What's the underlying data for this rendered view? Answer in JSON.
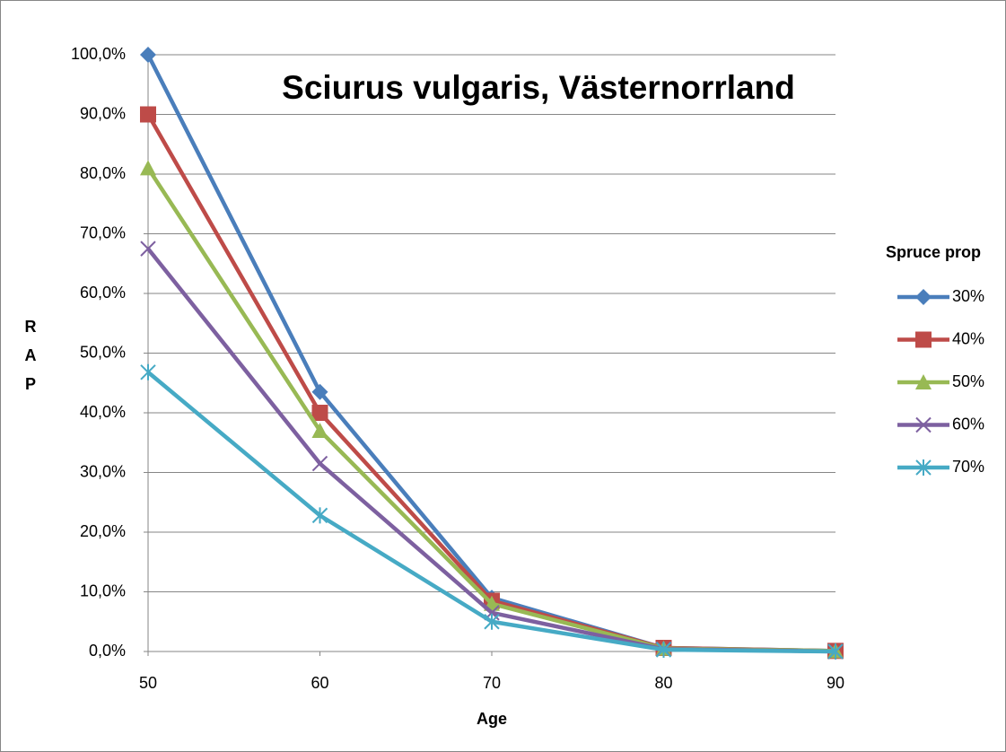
{
  "chart_data": {
    "type": "line",
    "title": "Sciurus vulgaris, Västernorrland",
    "x_label": "Age",
    "y_label": "RAP",
    "legend_title": "Spruce prop",
    "legend_position": "right",
    "grid": true,
    "x": [
      50,
      60,
      70,
      80,
      90
    ],
    "xlim": [
      50,
      90
    ],
    "xticks": [
      50,
      60,
      70,
      80,
      90
    ],
    "ylim": [
      0,
      100
    ],
    "yticks": [
      {
        "value": 0,
        "label": "0,0%"
      },
      {
        "value": 10,
        "label": "10,0%"
      },
      {
        "value": 20,
        "label": "20,0%"
      },
      {
        "value": 30,
        "label": "30,0%"
      },
      {
        "value": 40,
        "label": "40,0%"
      },
      {
        "value": 50,
        "label": "50,0%"
      },
      {
        "value": 60,
        "label": "60,0%"
      },
      {
        "value": 70,
        "label": "70,0%"
      },
      {
        "value": 80,
        "label": "80,0%"
      },
      {
        "value": 90,
        "label": "90,0%"
      },
      {
        "value": 100,
        "label": "100,0%"
      }
    ],
    "series": [
      {
        "name": "30%",
        "color": "#4a7ebb",
        "marker": "diamond",
        "values": [
          100,
          43.5,
          9,
          0.6,
          0.1
        ]
      },
      {
        "name": "40%",
        "color": "#be4b48",
        "marker": "square",
        "values": [
          90,
          40,
          8.5,
          0.6,
          0.1
        ]
      },
      {
        "name": "50%",
        "color": "#98b954",
        "marker": "triangle",
        "values": [
          81,
          37,
          8,
          0.5,
          0.1
        ]
      },
      {
        "name": "60%",
        "color": "#7d60a0",
        "marker": "x",
        "values": [
          67.5,
          31.5,
          6.5,
          0.4,
          0
        ]
      },
      {
        "name": "70%",
        "color": "#46aac5",
        "marker": "star",
        "values": [
          46.8,
          22.8,
          5,
          0.3,
          0
        ]
      }
    ]
  }
}
